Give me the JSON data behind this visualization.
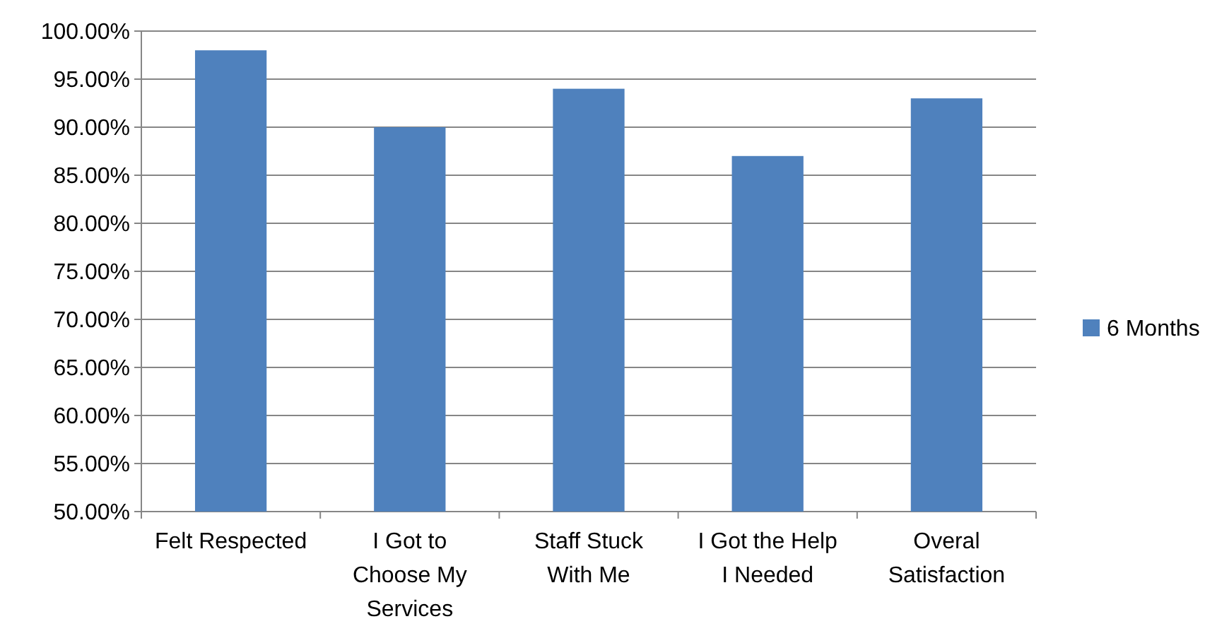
{
  "chart_data": {
    "type": "bar",
    "categories": [
      "Felt Respected",
      "I Got to Choose My Services",
      "Staff Stuck With Me",
      "I Got the Help I Needed",
      "Overal Satisfaction"
    ],
    "series": [
      {
        "name": "6 Months",
        "color": "#4f81bd",
        "values": [
          98,
          90,
          94,
          87,
          93
        ]
      }
    ],
    "ylim": [
      50,
      100
    ],
    "yticks": [
      {
        "value": 50,
        "label": "50.00%"
      },
      {
        "value": 55,
        "label": "55.00%"
      },
      {
        "value": 60,
        "label": "60.00%"
      },
      {
        "value": 65,
        "label": "65.00%"
      },
      {
        "value": 70,
        "label": "70.00%"
      },
      {
        "value": 75,
        "label": "75.00%"
      },
      {
        "value": 80,
        "label": "80.00%"
      },
      {
        "value": 85,
        "label": "85.00%"
      },
      {
        "value": 90,
        "label": "90.00%"
      },
      {
        "value": 95,
        "label": "95.00%"
      },
      {
        "value": 100,
        "label": "100.00%"
      }
    ],
    "grid": "y",
    "legend": "right"
  }
}
